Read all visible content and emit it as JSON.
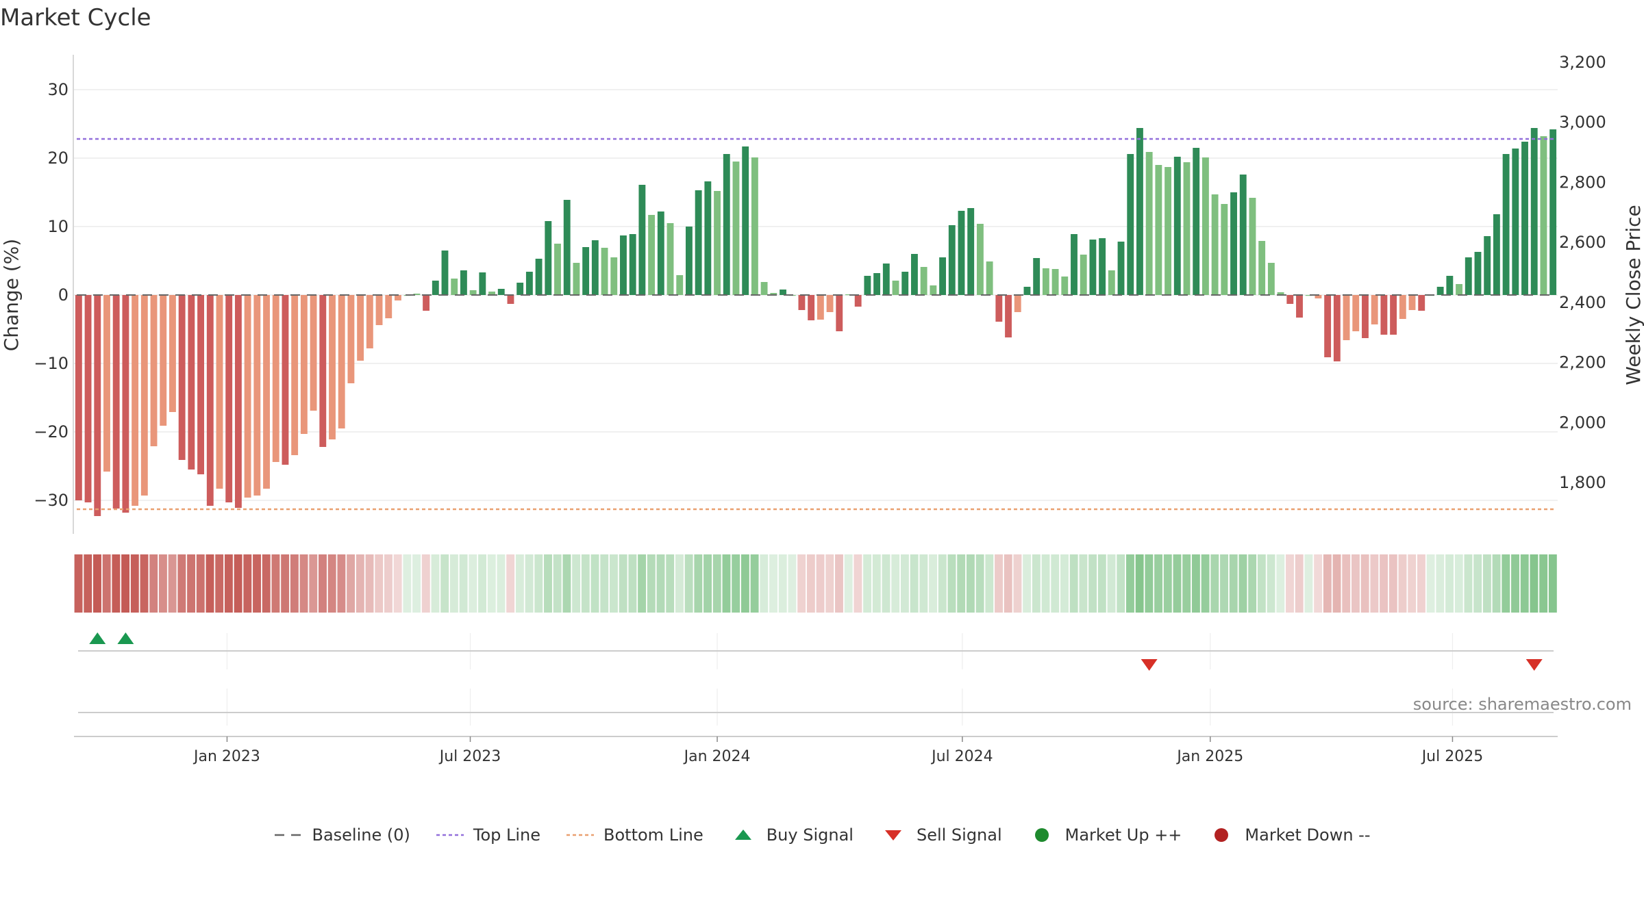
{
  "title": "Market Cycle",
  "source": "source: sharemaestro.com",
  "legend": [
    {
      "label": "Baseline (0)",
      "icon": "dashed-gray-line-icon"
    },
    {
      "label": "Top Line",
      "icon": "dotted-purple-line-icon"
    },
    {
      "label": "Bottom Line",
      "icon": "dotted-orange-line-icon"
    },
    {
      "label": "Buy Signal",
      "icon": "green-up-triangle-icon"
    },
    {
      "label": "Sell Signal",
      "icon": "red-down-triangle-icon"
    },
    {
      "label": "Market Up ++",
      "icon": "green-circle-icon"
    },
    {
      "label": "Market Down --",
      "icon": "red-circle-icon"
    }
  ],
  "colors": {
    "strong_up": "#2e8b57",
    "weak_up": "#7fbf7f",
    "strong_down": "#cd5c5c",
    "weak_down": "#e9967a",
    "top_line": "#9370db",
    "bottom_line": "#e9a070",
    "buy_signal": "#1a9850",
    "sell_signal": "#d73027",
    "market_up": "#1e8a2e",
    "market_down": "#b22222"
  },
  "chart_data": {
    "type": "bar",
    "ylabel": "Change (%)",
    "ylabel_right": "Weekly Close Price",
    "ylim": [
      -35,
      35
    ],
    "y_ticks": [
      30,
      20,
      10,
      0,
      -10,
      -20,
      -30
    ],
    "y_tick_labels": [
      "30",
      "20",
      "10",
      "0",
      "−10",
      "−20",
      "−30"
    ],
    "y2lim": [
      1700,
      3200
    ],
    "y2_ticks": [
      3200,
      3000,
      2800,
      2600,
      2400,
      2200,
      2000,
      1800
    ],
    "y2_tick_labels": [
      "3,200",
      "3,000",
      "2,800",
      "2,600",
      "2,400",
      "2,200",
      "2,000",
      "1,800"
    ],
    "x_tick_labels": [
      "Jan 2023",
      "Jul 2023",
      "Jan 2024",
      "Jul 2024",
      "Jan 2025",
      "Jul 2025"
    ],
    "x_tick_index": [
      16.3,
      42.2,
      68.5,
      94.6,
      121,
      146.8
    ],
    "top_line": 22.8,
    "bottom_line": -31.3,
    "baseline": 0,
    "grid": true,
    "legend_position": "bottom",
    "values": [
      -30,
      -30.3,
      -32.3,
      -25.8,
      -31.2,
      -31.8,
      -30.8,
      -29.3,
      -22.1,
      -19.1,
      -17.1,
      -24.1,
      -25.5,
      -26.2,
      -30.8,
      -28.3,
      -30.3,
      -31.1,
      -29.6,
      -29.3,
      -28.3,
      -24.4,
      -24.8,
      -23.4,
      -20.3,
      -16.9,
      -22.2,
      -21.1,
      -19.5,
      -12.9,
      -9.6,
      -7.8,
      -4.4,
      -3.4,
      -0.8,
      0,
      0.2,
      -2.3,
      2.1,
      6.5,
      2.4,
      3.6,
      0.7,
      3.3,
      0.5,
      0.9,
      -1.3,
      1.8,
      3.4,
      5.3,
      10.8,
      7.5,
      13.9,
      4.7,
      7,
      8,
      6.9,
      5.5,
      8.7,
      8.9,
      16.1,
      11.7,
      12.2,
      10.5,
      2.9,
      10,
      15.3,
      16.6,
      15.2,
      20.6,
      19.5,
      21.7,
      20.1,
      1.9,
      0.3,
      0.8,
      0,
      -2.2,
      -3.7,
      -3.6,
      -2.5,
      -5.3,
      0.1,
      -1.7,
      2.8,
      3.2,
      4.6,
      2.1,
      3.4,
      6,
      4.1,
      1.4,
      5.5,
      10.2,
      12.3,
      12.7,
      10.4,
      4.9,
      -3.9,
      -6.2,
      -2.5,
      1.2,
      5.4,
      3.9,
      3.8,
      2.7,
      8.9,
      5.9,
      8.1,
      8.3,
      3.6,
      7.8,
      20.6,
      24.4,
      20.9,
      19,
      18.7,
      20.2,
      19.4,
      21.5,
      20.1,
      14.7,
      13.3,
      15,
      17.6,
      14.2,
      7.9,
      4.7,
      0.4,
      -1.3,
      -3.3,
      0,
      -0.5,
      -9.1,
      -9.7,
      -6.6,
      -5.3,
      -6.3,
      -4.3,
      -5.8,
      -5.8,
      -3.5,
      -2.2,
      -2.3,
      0,
      1.2,
      2.8,
      1.6,
      5.5,
      6.3,
      8.6,
      11.8,
      20.6,
      21.4,
      22.4,
      24.4,
      23.2,
      24.2
    ],
    "bar_strength": [
      "s",
      "s",
      "s",
      "w",
      "s",
      "s",
      "w",
      "w",
      "w",
      "w",
      "w",
      "s",
      "s",
      "s",
      "s",
      "w",
      "s",
      "s",
      "w",
      "w",
      "w",
      "w",
      "s",
      "w",
      "w",
      "w",
      "s",
      "w",
      "w",
      "w",
      "w",
      "w",
      "w",
      "w",
      "w",
      "w",
      "w",
      "s",
      "s",
      "s",
      "w",
      "s",
      "w",
      "s",
      "w",
      "s",
      "s",
      "s",
      "s",
      "s",
      "s",
      "w",
      "s",
      "w",
      "s",
      "s",
      "w",
      "w",
      "s",
      "s",
      "s",
      "w",
      "s",
      "w",
      "w",
      "s",
      "s",
      "s",
      "w",
      "s",
      "w",
      "s",
      "w",
      "w",
      "w",
      "s",
      "w",
      "s",
      "s",
      "w",
      "w",
      "s",
      "w",
      "s",
      "s",
      "s",
      "s",
      "w",
      "s",
      "s",
      "w",
      "w",
      "s",
      "s",
      "s",
      "s",
      "w",
      "w",
      "s",
      "s",
      "w",
      "s",
      "s",
      "w",
      "w",
      "w",
      "s",
      "w",
      "s",
      "s",
      "w",
      "s",
      "s",
      "s",
      "w",
      "w",
      "w",
      "s",
      "w",
      "s",
      "w",
      "w",
      "w",
      "s",
      "s",
      "w",
      "w",
      "w",
      "w",
      "s",
      "s",
      "w",
      "w",
      "s",
      "s",
      "w",
      "w",
      "s",
      "w",
      "s",
      "s",
      "w",
      "w",
      "s",
      "w",
      "s",
      "s",
      "w",
      "s",
      "s",
      "s",
      "s",
      "s",
      "s",
      "s",
      "s",
      "w",
      "s"
    ],
    "price": [
      2430,
      2430,
      2430,
      2430,
      2430,
      2430,
      2430,
      2430,
      2430,
      2430,
      2430,
      2430,
      2430,
      2430,
      2430,
      2430,
      2430,
      2430,
      2430,
      2430,
      2430,
      2430,
      2430,
      2430,
      2430,
      2430,
      2430,
      2430,
      2430,
      2430,
      2430,
      2430,
      2430,
      2430,
      2430,
      2430,
      2430,
      2430,
      2430,
      2430,
      2430,
      2430,
      2430,
      2430,
      2430,
      2430,
      2430,
      2430,
      2430,
      2430,
      2430,
      2430,
      2430,
      2430,
      2430,
      2430,
      2430,
      2430,
      2430,
      2430,
      2430,
      2430,
      2430,
      2430,
      2430,
      2430,
      2430,
      2430,
      2430,
      2430,
      2430,
      2430,
      2430,
      2430,
      2430,
      2430,
      2430,
      2430,
      2430,
      2430,
      2430,
      2430,
      2430,
      2430,
      2430,
      2430,
      2430,
      2430,
      2430,
      2430,
      2430,
      2430,
      2430,
      2430,
      2430,
      2430,
      2430,
      2430,
      2430,
      2430,
      2430,
      2430,
      2430,
      2430,
      2430,
      2430,
      2430,
      2430,
      2430,
      2430,
      2430,
      2430,
      2430,
      2430,
      2430,
      2430,
      2430,
      2430,
      2430,
      2430,
      2430,
      2430,
      2430,
      2430,
      2430,
      2430,
      2430,
      2430,
      2430,
      2430,
      2430,
      2430,
      2430,
      2430,
      2430,
      2430,
      2430,
      2430,
      2430,
      2430,
      2430,
      2430,
      2430,
      2430,
      2430,
      2430,
      2430,
      2430,
      2430,
      2430,
      2430,
      2430,
      2430,
      2430,
      2430,
      2430,
      2430,
      2430
    ],
    "buy_signals": [
      2,
      5
    ],
    "sell_signals": [
      114,
      155
    ]
  }
}
